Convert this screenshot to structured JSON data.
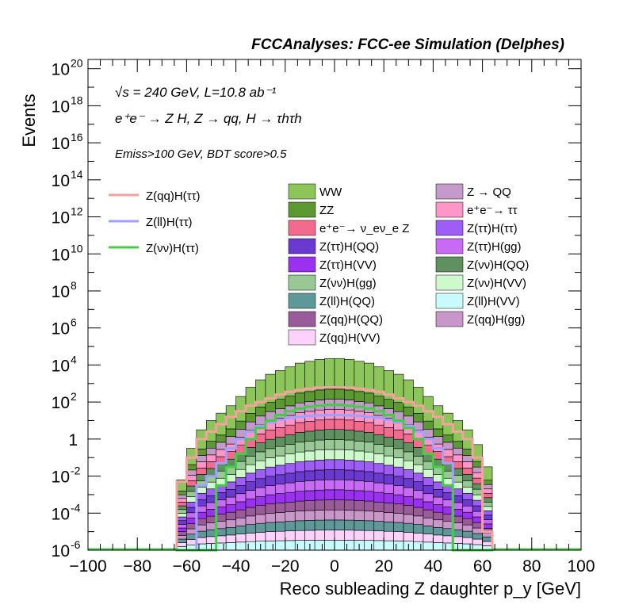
{
  "title": "FCCAnalyses: FCC-ee Simulation (Delphes)",
  "annotations": {
    "energy_lumi": "√s = 240 GeV, L=10.8 ab⁻¹",
    "process": "e⁺e⁻ → Z H, Z → qq, H → τhτh",
    "cuts": "Emiss>100 GeV, BDT score>0.5"
  },
  "chart_data": {
    "type": "bar",
    "stacked": true,
    "log_y": true,
    "xlabel": "Reco subleading Z daughter p_y [GeV]",
    "ylabel": "Events",
    "xlim": [
      -100,
      100
    ],
    "ylim_log10": [
      -6,
      20.5
    ],
    "x_ticks": [
      -100,
      -80,
      -60,
      -40,
      -20,
      0,
      20,
      40,
      60,
      80,
      100
    ],
    "y_ticks": [
      {
        "exp": -6,
        "label": "10",
        "sup": "-6"
      },
      {
        "exp": -4,
        "label": "10",
        "sup": "-4"
      },
      {
        "exp": -2,
        "label": "10",
        "sup": "-2"
      },
      {
        "exp": 0,
        "label": "1",
        "sup": ""
      },
      {
        "exp": 2,
        "label": "10",
        "sup": "2"
      },
      {
        "exp": 4,
        "label": "10",
        "sup": "4"
      },
      {
        "exp": 6,
        "label": "10",
        "sup": "6"
      },
      {
        "exp": 8,
        "label": "10",
        "sup": "8"
      },
      {
        "exp": 10,
        "label": "10",
        "sup": "10"
      },
      {
        "exp": 12,
        "label": "10",
        "sup": "12"
      },
      {
        "exp": 14,
        "label": "10",
        "sup": "14"
      },
      {
        "exp": 16,
        "label": "10",
        "sup": "16"
      },
      {
        "exp": 18,
        "label": "10",
        "sup": "18"
      },
      {
        "exp": 20,
        "label": "10",
        "sup": "20"
      }
    ],
    "bin_edges": [
      -64,
      -60,
      -56,
      -52,
      -48,
      -44,
      -40,
      -36,
      -32,
      -28,
      -24,
      -20,
      -16,
      -12,
      -8,
      -4,
      0,
      4,
      8,
      12,
      16,
      20,
      24,
      28,
      32,
      36,
      40,
      44,
      48,
      52,
      56,
      60,
      64
    ],
    "stack_order_bottom_to_top": [
      "Z(ll)H(VV)",
      "Z(qq)H(VV)",
      "Z(ll)H(QQ)",
      "Z(qq)H(gg)",
      "Z(qq)H(QQ)",
      "Z(ττ)H(VV)",
      "Z(ττ)H(gg)",
      "Z(ττ)H(QQ)",
      "Z(ττ)H(ττ)",
      "Z(νν)H(VV)",
      "Z(νν)H(gg)",
      "Z(νν)H(QQ)",
      "e⁺e⁻→ ν_eν_e Z",
      "e⁺e⁻→ ττ",
      "Z → QQ",
      "ZZ",
      "WW"
    ],
    "stack_total_log10": [
      -2.2,
      -0.5,
      0.5,
      1.0,
      1.4,
      1.8,
      2.3,
      2.8,
      3.2,
      3.5,
      3.7,
      3.9,
      4.1,
      4.2,
      4.3,
      4.35,
      4.35,
      4.3,
      4.2,
      4.1,
      3.9,
      3.7,
      3.5,
      3.2,
      2.8,
      2.3,
      1.8,
      1.4,
      1.0,
      0.5,
      -0.3,
      -1.5
    ],
    "stacked_samples": [
      {
        "name": "WW",
        "color": "#8cc65a"
      },
      {
        "name": "ZZ",
        "color": "#5c9932"
      },
      {
        "name": "e⁺e⁻→ ν_eν_e Z",
        "color": "#f26b8e"
      },
      {
        "name": "Z(ττ)H(QQ)",
        "color": "#6a3ad0"
      },
      {
        "name": "Z(ττ)H(VV)",
        "color": "#9a30f0"
      },
      {
        "name": "Z(νν)H(gg)",
        "color": "#98c994"
      },
      {
        "name": "Z(ll)H(QQ)",
        "color": "#5f9898"
      },
      {
        "name": "Z(qq)H(QQ)",
        "color": "#9a5c98"
      },
      {
        "name": "Z(qq)H(VV)",
        "color": "#fcd2fb"
      },
      {
        "name": "Z → QQ",
        "color": "#c49acb"
      },
      {
        "name": "e⁺e⁻→ ττ",
        "color": "#ff96c8"
      },
      {
        "name": "Z(ττ)H(ττ)",
        "color": "#9d5df6"
      },
      {
        "name": "Z(ττ)H(gg)",
        "color": "#c86af6"
      },
      {
        "name": "Z(νν)H(QQ)",
        "color": "#5f9160"
      },
      {
        "name": "Z(νν)H(VV)",
        "color": "#cef9cd"
      },
      {
        "name": "Z(ll)H(VV)",
        "color": "#c8fcfc"
      },
      {
        "name": "Z(qq)H(gg)",
        "color": "#c896c8"
      }
    ],
    "signals": [
      {
        "name": "Z(qq)H(ττ)",
        "color": "#f7a0a0",
        "bin_log10": [
          -2.3,
          -1.0,
          0.0,
          0.4,
          0.8,
          1.2,
          1.5,
          1.8,
          2.0,
          2.2,
          2.4,
          2.55,
          2.65,
          2.72,
          2.78,
          2.8,
          2.8,
          2.78,
          2.72,
          2.65,
          2.55,
          2.4,
          2.2,
          2.0,
          1.8,
          1.5,
          1.2,
          0.8,
          0.4,
          0.0,
          -1.0,
          -5.0
        ]
      },
      {
        "name": "Z(ll)H(ττ)",
        "color": "#a0a0ff",
        "bin_log10": [
          -6.5,
          -6.5,
          -2.5,
          -2.0,
          -1.3,
          -0.5,
          0.0,
          0.4,
          0.7,
          0.9,
          1.05,
          1.15,
          1.2,
          1.25,
          1.28,
          1.3,
          1.3,
          1.28,
          1.25,
          1.2,
          1.15,
          1.05,
          0.9,
          0.7,
          0.4,
          0.0,
          -0.5,
          -1.3,
          -6.5,
          -6.5,
          -6.5,
          -6.5
        ]
      },
      {
        "name": "Z(νν)H(ττ)",
        "color": "#44cc44",
        "bin_log10": [
          -6.5,
          -6.5,
          -6.5,
          -6.5,
          -2.5,
          -1.5,
          -0.8,
          0.0,
          0.6,
          1.0,
          1.3,
          1.5,
          1.65,
          1.75,
          1.8,
          1.85,
          1.85,
          1.8,
          1.75,
          1.65,
          1.5,
          1.3,
          1.0,
          0.6,
          0.0,
          -0.8,
          -1.5,
          -2.5,
          -6.5,
          -6.5,
          -6.5,
          -6.5
        ]
      }
    ]
  }
}
